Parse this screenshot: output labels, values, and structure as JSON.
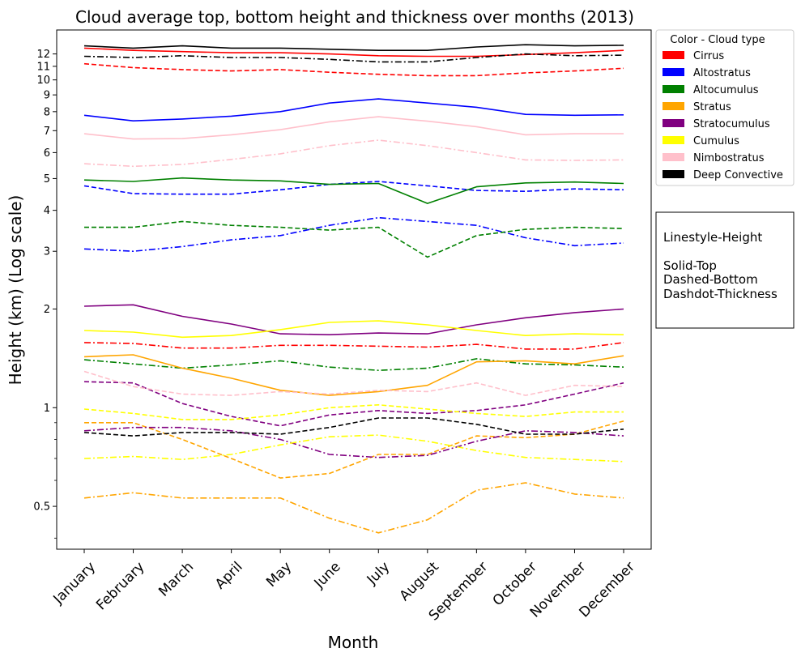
{
  "chart_data": {
    "type": "line",
    "title": "Cloud average top, bottom height and thickness over months (2013)",
    "xlabel": "Month",
    "ylabel": "Height (km) (Log scale)",
    "yscale": "log",
    "ylim": [
      0.37,
      14.2
    ],
    "categories": [
      "January",
      "February",
      "March",
      "April",
      "May",
      "June",
      "July",
      "August",
      "September",
      "October",
      "November",
      "December"
    ],
    "y_ticks": [
      {
        "value": 0.5,
        "label": "0.5"
      },
      {
        "value": 1,
        "label": "1"
      },
      {
        "value": 2,
        "label": "2"
      },
      {
        "value": 3,
        "label": "3"
      },
      {
        "value": 4,
        "label": "4"
      },
      {
        "value": 5,
        "label": "5"
      },
      {
        "value": 6,
        "label": "6"
      },
      {
        "value": 7,
        "label": "7"
      },
      {
        "value": 8,
        "label": "8"
      },
      {
        "value": 9,
        "label": "9"
      },
      {
        "value": 10,
        "label": "10"
      },
      {
        "value": 11,
        "label": "11"
      },
      {
        "value": 12,
        "label": "12"
      }
    ],
    "y_minor_ticks": [
      0.4,
      0.6,
      0.7,
      0.8,
      0.9
    ],
    "legend": {
      "title": "Color - Cloud type",
      "placement": "outside upper right",
      "entries": [
        {
          "label": "Cirrus",
          "color": "#ff0000"
        },
        {
          "label": "Altostratus",
          "color": "#0000ff"
        },
        {
          "label": "Altocumulus",
          "color": "#008000"
        },
        {
          "label": "Stratus",
          "color": "#ffa500"
        },
        {
          "label": "Stratocumulus",
          "color": "#800080"
        },
        {
          "label": "Cumulus",
          "color": "#ffff00"
        },
        {
          "label": "Nimbostratus",
          "color": "#ffc0cb"
        },
        {
          "label": "Deep Convective",
          "color": "#000000"
        }
      ]
    },
    "note": {
      "lines": [
        "Linestyle-Height",
        "",
        "Solid-Top",
        "Dashed-Bottom",
        "Dashdot-Thickness"
      ]
    },
    "series": [
      {
        "cloud": "Cirrus",
        "measure": "Top",
        "color": "#ff0000",
        "style": "solid",
        "values": [
          12.5,
          12.3,
          12.2,
          12.1,
          12.1,
          12.0,
          11.85,
          11.8,
          11.8,
          11.95,
          12.1,
          12.3
        ]
      },
      {
        "cloud": "Cirrus",
        "measure": "Bottom",
        "color": "#ff0000",
        "style": "dashed",
        "values": [
          11.2,
          10.9,
          10.75,
          10.65,
          10.75,
          10.55,
          10.4,
          10.3,
          10.3,
          10.5,
          10.65,
          10.85
        ]
      },
      {
        "cloud": "Cirrus",
        "measure": "Thickness",
        "color": "#ff0000",
        "style": "dashdot",
        "values": [
          1.58,
          1.57,
          1.52,
          1.52,
          1.55,
          1.55,
          1.54,
          1.53,
          1.56,
          1.51,
          1.51,
          1.58
        ]
      },
      {
        "cloud": "Altostratus",
        "measure": "Top",
        "color": "#0000ff",
        "style": "solid",
        "values": [
          7.8,
          7.5,
          7.6,
          7.75,
          8.0,
          8.5,
          8.75,
          8.5,
          8.25,
          7.85,
          7.8,
          7.82
        ]
      },
      {
        "cloud": "Altostratus",
        "measure": "Bottom",
        "color": "#0000ff",
        "style": "dashed",
        "values": [
          4.75,
          4.5,
          4.48,
          4.48,
          4.62,
          4.8,
          4.9,
          4.75,
          4.6,
          4.57,
          4.65,
          4.62
        ]
      },
      {
        "cloud": "Altostratus",
        "measure": "Thickness",
        "color": "#0000ff",
        "style": "dashdot",
        "values": [
          3.05,
          3.0,
          3.1,
          3.25,
          3.35,
          3.6,
          3.8,
          3.7,
          3.6,
          3.3,
          3.12,
          3.18
        ]
      },
      {
        "cloud": "Altocumulus",
        "measure": "Top",
        "color": "#008000",
        "style": "solid",
        "values": [
          4.95,
          4.9,
          5.02,
          4.95,
          4.92,
          4.8,
          4.83,
          4.2,
          4.72,
          4.85,
          4.88,
          4.83
        ]
      },
      {
        "cloud": "Altocumulus",
        "measure": "Bottom",
        "color": "#008000",
        "style": "dashed",
        "values": [
          3.55,
          3.55,
          3.7,
          3.6,
          3.55,
          3.48,
          3.55,
          2.88,
          3.35,
          3.5,
          3.55,
          3.52
        ]
      },
      {
        "cloud": "Altocumulus",
        "measure": "Thickness",
        "color": "#008000",
        "style": "dashdot",
        "values": [
          1.4,
          1.36,
          1.32,
          1.35,
          1.39,
          1.33,
          1.3,
          1.32,
          1.41,
          1.36,
          1.35,
          1.33
        ]
      },
      {
        "cloud": "Stratus",
        "measure": "Top",
        "color": "#ffa500",
        "style": "solid",
        "values": [
          1.43,
          1.45,
          1.32,
          1.23,
          1.13,
          1.09,
          1.12,
          1.17,
          1.38,
          1.39,
          1.36,
          1.44
        ]
      },
      {
        "cloud": "Stratus",
        "measure": "Bottom",
        "color": "#ffa500",
        "style": "dashed",
        "values": [
          0.9,
          0.9,
          0.8,
          0.7,
          0.61,
          0.63,
          0.72,
          0.72,
          0.82,
          0.81,
          0.83,
          0.91
        ]
      },
      {
        "cloud": "Stratus",
        "measure": "Thickness",
        "color": "#ffa500",
        "style": "dashdot",
        "values": [
          0.53,
          0.55,
          0.53,
          0.53,
          0.53,
          0.46,
          0.415,
          0.455,
          0.56,
          0.59,
          0.545,
          0.53
        ]
      },
      {
        "cloud": "Stratocumulus",
        "measure": "Top",
        "color": "#800080",
        "style": "solid",
        "values": [
          2.04,
          2.06,
          1.9,
          1.8,
          1.68,
          1.67,
          1.69,
          1.68,
          1.79,
          1.88,
          1.95,
          2.0
        ]
      },
      {
        "cloud": "Stratocumulus",
        "measure": "Bottom",
        "color": "#800080",
        "style": "dashed",
        "values": [
          1.2,
          1.19,
          1.03,
          0.94,
          0.88,
          0.95,
          0.98,
          0.96,
          0.98,
          1.02,
          1.1,
          1.19
        ]
      },
      {
        "cloud": "Stratocumulus",
        "measure": "Thickness",
        "color": "#800080",
        "style": "dashdot",
        "values": [
          0.85,
          0.87,
          0.87,
          0.85,
          0.8,
          0.72,
          0.705,
          0.715,
          0.79,
          0.85,
          0.84,
          0.82
        ]
      },
      {
        "cloud": "Cumulus",
        "measure": "Top",
        "color": "#ffff00",
        "style": "solid",
        "values": [
          1.72,
          1.7,
          1.64,
          1.66,
          1.73,
          1.82,
          1.84,
          1.79,
          1.72,
          1.66,
          1.68,
          1.67
        ]
      },
      {
        "cloud": "Cumulus",
        "measure": "Bottom",
        "color": "#ffff00",
        "style": "dashed",
        "values": [
          0.99,
          0.96,
          0.92,
          0.92,
          0.95,
          1.0,
          1.02,
          0.99,
          0.96,
          0.94,
          0.97,
          0.97
        ]
      },
      {
        "cloud": "Cumulus",
        "measure": "Thickness",
        "color": "#ffff00",
        "style": "dashdot",
        "values": [
          0.7,
          0.71,
          0.695,
          0.72,
          0.77,
          0.815,
          0.825,
          0.79,
          0.74,
          0.705,
          0.695,
          0.685
        ]
      },
      {
        "cloud": "Nimbostratus",
        "measure": "Top",
        "color": "#ffc0cb",
        "style": "solid",
        "values": [
          6.85,
          6.6,
          6.62,
          6.8,
          7.05,
          7.45,
          7.72,
          7.48,
          7.2,
          6.8,
          6.85,
          6.85
        ]
      },
      {
        "cloud": "Nimbostratus",
        "measure": "Bottom",
        "color": "#ffc0cb",
        "style": "dashed",
        "values": [
          1.29,
          1.16,
          1.1,
          1.09,
          1.12,
          1.1,
          1.13,
          1.12,
          1.19,
          1.09,
          1.17,
          1.16
        ]
      },
      {
        "cloud": "Nimbostratus",
        "measure": "Thickness",
        "color": "#ffc0cb",
        "style": "dashdot",
        "values": [
          5.55,
          5.45,
          5.52,
          5.72,
          5.95,
          6.3,
          6.55,
          6.3,
          6.0,
          5.7,
          5.68,
          5.7
        ]
      },
      {
        "cloud": "Deep Convective",
        "measure": "Top",
        "color": "#000000",
        "style": "solid",
        "values": [
          12.7,
          12.5,
          12.7,
          12.5,
          12.5,
          12.4,
          12.3,
          12.3,
          12.6,
          12.8,
          12.7,
          12.75
        ]
      },
      {
        "cloud": "Deep Convective",
        "measure": "Bottom",
        "color": "#000000",
        "style": "dashed",
        "values": [
          0.84,
          0.82,
          0.84,
          0.84,
          0.83,
          0.87,
          0.93,
          0.93,
          0.89,
          0.83,
          0.83,
          0.86
        ]
      },
      {
        "cloud": "Deep Convective",
        "measure": "Thickness",
        "color": "#000000",
        "style": "dashdot",
        "values": [
          11.8,
          11.7,
          11.85,
          11.7,
          11.7,
          11.55,
          11.35,
          11.35,
          11.7,
          12.0,
          11.85,
          11.9
        ]
      }
    ]
  }
}
